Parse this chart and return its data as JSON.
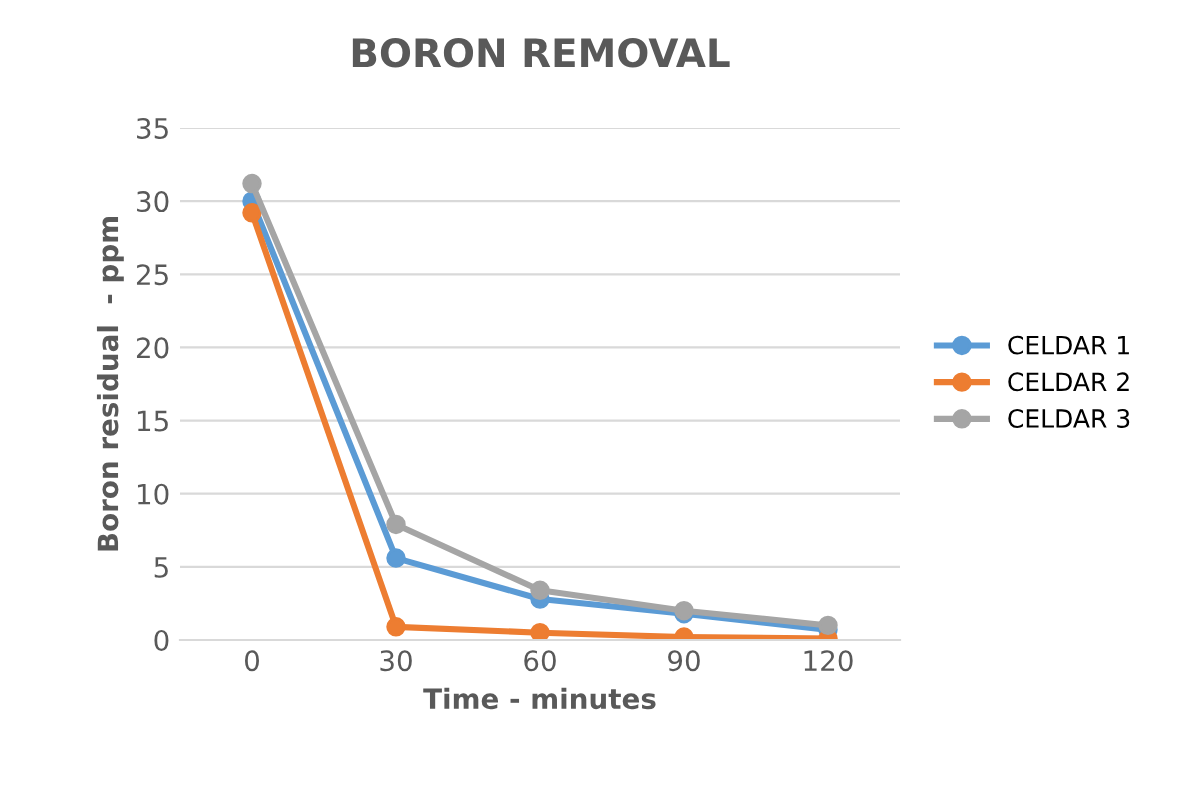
{
  "chart_data": {
    "type": "line",
    "title": "BORON REMOVAL",
    "xlabel": "Time - minutes",
    "ylabel": "Boron residual  - ppm",
    "categories": [
      "0",
      "30",
      "60",
      "90",
      "120"
    ],
    "series": [
      {
        "name": "CELDAR 1",
        "color": "#5b9bd5",
        "values": [
          30,
          5.6,
          2.8,
          1.8,
          0.7
        ]
      },
      {
        "name": "CELDAR 2",
        "color": "#ed7d31",
        "values": [
          29.2,
          0.9,
          0.5,
          0.2,
          0.1
        ]
      },
      {
        "name": "CELDAR 3",
        "color": "#a5a5a5",
        "values": [
          31.2,
          7.9,
          3.4,
          2.0,
          1.0
        ]
      }
    ],
    "ylim": [
      0,
      35
    ],
    "yticks": [
      0,
      5,
      10,
      15,
      20,
      25,
      30,
      35
    ],
    "grid": "y",
    "legend": "right",
    "marker": "circle",
    "line_style": "solid"
  }
}
